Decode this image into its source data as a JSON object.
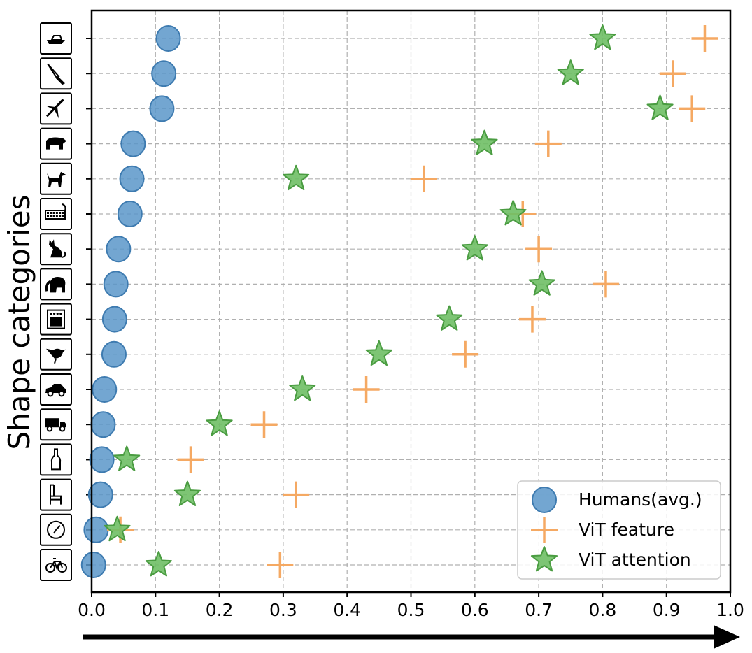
{
  "chart_data": {
    "type": "scatter",
    "orientation": "horizontal",
    "ylabel": "Shape categories",
    "xlabel": "",
    "xlim": [
      0.0,
      1.0
    ],
    "x_ticks": [
      "0.0",
      "0.1",
      "0.2",
      "0.3",
      "0.4",
      "0.5",
      "0.6",
      "0.7",
      "0.8",
      "0.9",
      "1.0"
    ],
    "grid": true,
    "legend_position": "lower-right",
    "x_axis_arrow": true,
    "categories": [
      "boat",
      "knife",
      "airplane",
      "bear",
      "dog",
      "keyboard",
      "cat",
      "elephant",
      "oven",
      "bird",
      "car",
      "truck",
      "bottle",
      "chair",
      "clock",
      "bicycle"
    ],
    "category_icons": [
      "boat-icon",
      "knife-icon",
      "airplane-icon",
      "bear-icon",
      "dog-icon",
      "keyboard-icon",
      "cat-icon",
      "elephant-icon",
      "oven-icon",
      "bird-icon",
      "car-icon",
      "truck-icon",
      "bottle-icon",
      "chair-icon",
      "clock-icon",
      "bicycle-icon"
    ],
    "series": [
      {
        "name": "Humans(avg.)",
        "marker": "circle",
        "color": "#5b97c9",
        "values": [
          0.12,
          0.113,
          0.11,
          0.065,
          0.063,
          0.06,
          0.042,
          0.038,
          0.036,
          0.035,
          0.02,
          0.018,
          0.016,
          0.014,
          0.007,
          0.003
        ]
      },
      {
        "name": "ViT feature",
        "marker": "plus",
        "color": "#f5a963",
        "values": [
          0.96,
          0.91,
          0.94,
          0.715,
          0.52,
          0.675,
          0.7,
          0.805,
          0.69,
          0.585,
          0.43,
          0.27,
          0.155,
          0.32,
          0.045,
          0.295
        ]
      },
      {
        "name": "ViT attention",
        "marker": "star",
        "color": "#6fbf65",
        "values": [
          0.8,
          0.75,
          0.89,
          0.615,
          0.32,
          0.66,
          0.6,
          0.705,
          0.56,
          0.45,
          0.33,
          0.2,
          0.055,
          0.15,
          0.04,
          0.105
        ]
      }
    ]
  }
}
